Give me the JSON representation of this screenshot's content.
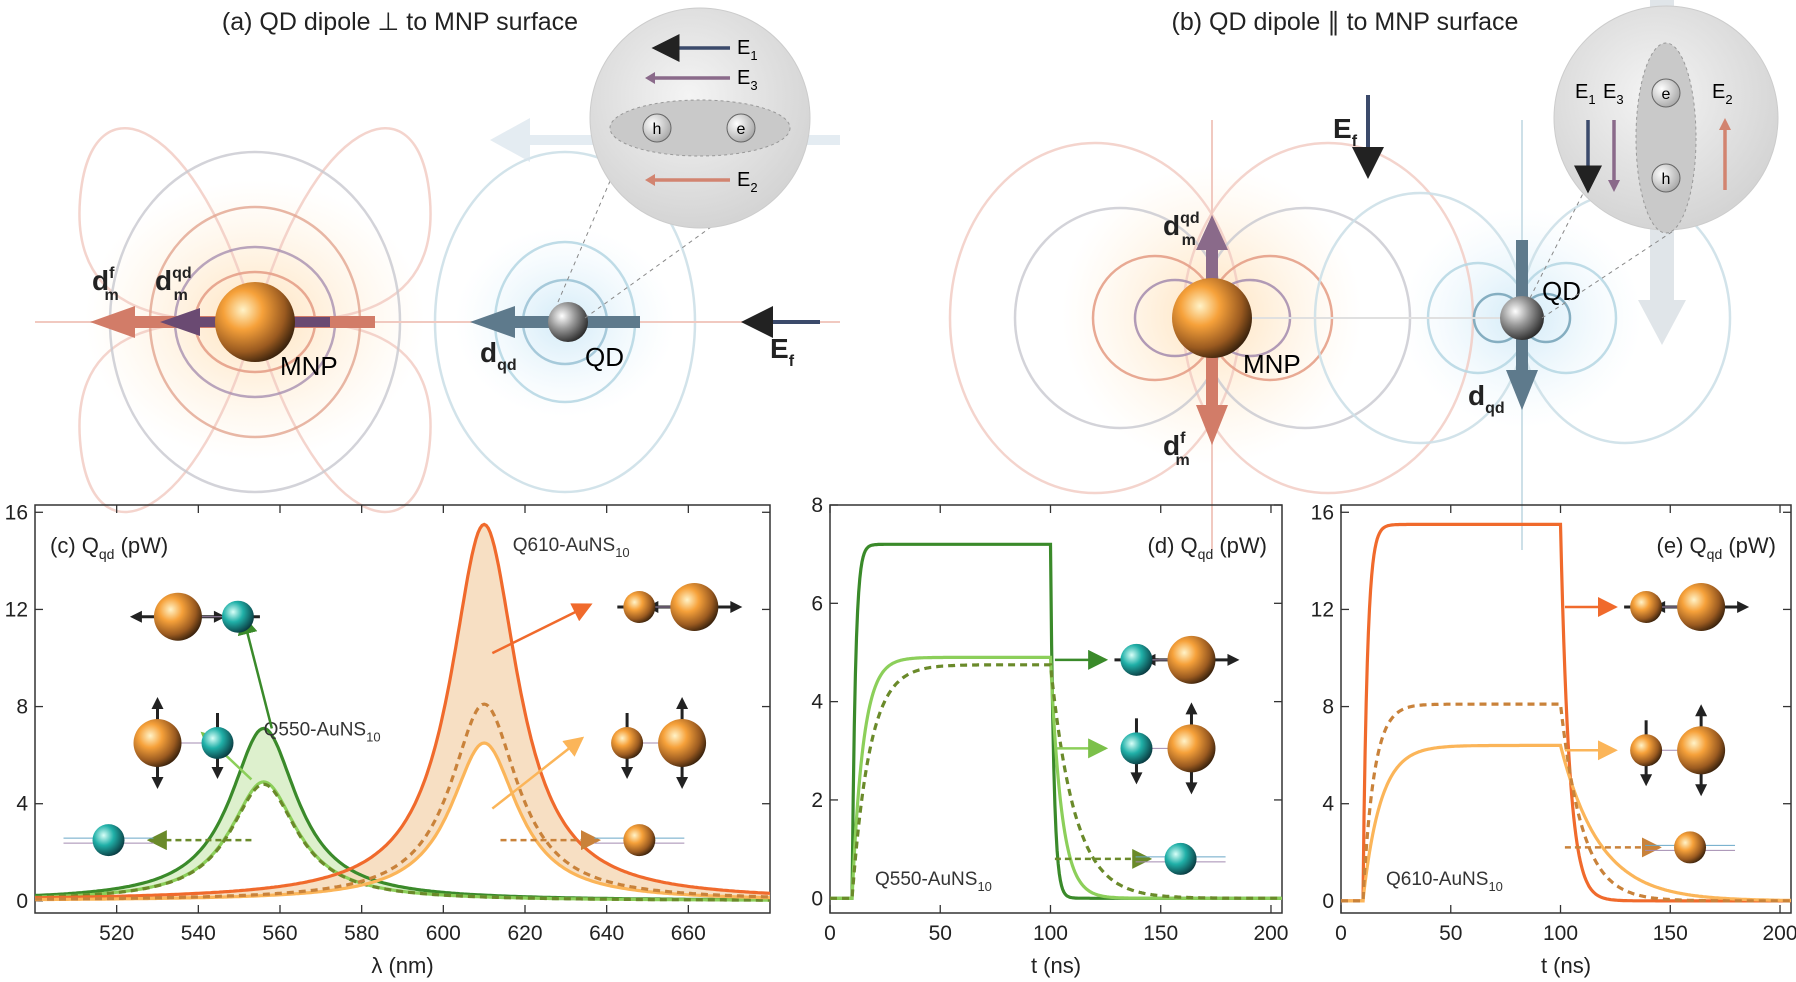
{
  "panel_a": {
    "title": "(a) QD dipole ⊥ to MNP surface",
    "mnp_label": "MNP",
    "qd_label": "QD",
    "d_f": "d",
    "d_f_sup": "f",
    "d_f_sub": "m",
    "d_qd": "d",
    "d_qd_sup": "qd",
    "d_qd_sub": "m",
    "dqd": "d",
    "dqd_sub": "qd",
    "E_f": "E",
    "E_f_sub": "f",
    "E1": "E",
    "E1_sub": "1",
    "E2": "E",
    "E2_sub": "2",
    "E3": "E",
    "E3_sub": "3",
    "hole": "h",
    "electron": "e"
  },
  "panel_b": {
    "title": "(b) QD dipole ∥ to MNP surface",
    "mnp_label": "MNP",
    "qd_label": "QD",
    "d_f": "d",
    "d_f_sup": "f",
    "d_f_sub": "m",
    "d_qd": "d",
    "d_qd_sup": "qd",
    "d_qd_sub": "m",
    "dqd": "d",
    "dqd_sub": "qd",
    "E_f": "E",
    "E_f_sub": "f",
    "E1": "E",
    "E1_sub": "1",
    "E2": "E",
    "E2_sub": "2",
    "E3": "E",
    "E3_sub": "3",
    "hole": "h",
    "electron": "e"
  },
  "colors": {
    "dark_green": "#3a8a2a",
    "light_green": "#8ccf5a",
    "dark_orange": "#f06a2c",
    "light_orange": "#fbb559",
    "mid_orange": "#c9823a",
    "e1": "#3b4a6b",
    "e2": "#d28470",
    "e3": "#8a6a8a"
  },
  "chart_data": [
    {
      "type": "line",
      "panel": "c",
      "title": "(c) Q",
      "title_sub": "qd",
      "title_unit": "(pW)",
      "xlabel": "λ (nm)",
      "ylabel": "",
      "xlim": [
        500,
        680
      ],
      "ylim": [
        -0.5,
        16.3
      ],
      "xticks": [
        520,
        540,
        560,
        580,
        600,
        620,
        640,
        660
      ],
      "yticks": [
        0,
        4,
        8,
        12,
        16
      ],
      "annotations": [
        "Q550-AuNS",
        "Q610-AuNS"
      ],
      "annotation_sub": "10",
      "series": [
        {
          "name": "Q550-AuNS10 perpendicular",
          "center": 556,
          "peak": 7.1,
          "hwhm": 10,
          "style": "solid",
          "color": "#3a8a2a"
        },
        {
          "name": "Q550-AuNS10 parallel",
          "center": 556,
          "peak": 4.9,
          "hwhm": 10,
          "style": "solid",
          "color": "#8ccf5a"
        },
        {
          "name": "Q550-AuNS10 isotropic",
          "center": 556,
          "peak": 4.8,
          "hwhm": 10,
          "style": "dashed",
          "color": "#6a8a2a"
        },
        {
          "name": "Q610-AuNS10 perpendicular",
          "center": 610,
          "peak": 15.5,
          "hwhm": 10,
          "style": "solid",
          "color": "#f06a2c"
        },
        {
          "name": "Q610-AuNS10 parallel",
          "center": 610,
          "peak": 6.5,
          "hwhm": 10,
          "style": "solid",
          "color": "#fbb559"
        },
        {
          "name": "Q610-AuNS10 isotropic",
          "center": 610,
          "peak": 8.1,
          "hwhm": 10,
          "style": "dashed",
          "color": "#c9823a"
        }
      ]
    },
    {
      "type": "line",
      "panel": "d",
      "title": "(d) Q",
      "title_sub": "qd",
      "title_unit": "(pW)",
      "xlabel": "t (ns)",
      "xlim": [
        0,
        205
      ],
      "ylim": [
        -0.3,
        8
      ],
      "xticks": [
        0,
        50,
        100,
        150,
        200
      ],
      "yticks": [
        0,
        2,
        4,
        6,
        8
      ],
      "annotations": [
        "Q550-AuNS"
      ],
      "annotation_sub": "10",
      "pulse_on": 10,
      "pulse_off": 100,
      "series": [
        {
          "name": "perpendicular",
          "plateau": 7.2,
          "tau_rise": 1.5,
          "tau_fall": 1.5,
          "style": "solid",
          "color": "#3a8a2a"
        },
        {
          "name": "parallel",
          "plateau": 4.9,
          "tau_rise": 5,
          "tau_fall": 5,
          "style": "solid",
          "color": "#8ccf5a"
        },
        {
          "name": "isotropic",
          "plateau": 4.75,
          "tau_rise": 8,
          "tau_fall": 11,
          "style": "dashed",
          "color": "#6a8a2a"
        }
      ]
    },
    {
      "type": "line",
      "panel": "e",
      "title": "(e) Q",
      "title_sub": "qd",
      "title_unit": "(pW)",
      "xlabel": "t (ns)",
      "xlim": [
        0,
        205
      ],
      "ylim": [
        -0.5,
        16.3
      ],
      "xticks": [
        0,
        50,
        100,
        150,
        200
      ],
      "yticks": [
        0,
        4,
        8,
        12,
        16
      ],
      "annotations": [
        "Q610-AuNS"
      ],
      "annotation_sub": "10",
      "pulse_on": 10,
      "pulse_off": 100,
      "series": [
        {
          "name": "perpendicular",
          "plateau": 15.5,
          "tau_rise": 2,
          "tau_fall": 4,
          "style": "solid",
          "color": "#f06a2c"
        },
        {
          "name": "parallel",
          "plateau": 6.4,
          "tau_rise": 8,
          "tau_fall": 18,
          "style": "solid",
          "color": "#fbb559"
        },
        {
          "name": "isotropic",
          "plateau": 8.1,
          "tau_rise": 5,
          "tau_fall": 10,
          "style": "dashed",
          "color": "#c9823a"
        }
      ]
    }
  ]
}
